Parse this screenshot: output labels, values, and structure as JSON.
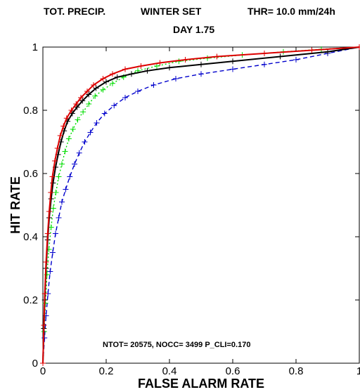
{
  "header": {
    "variable": "TOT. PRECIP.",
    "set": "WINTER SET",
    "threshold": "THR= 10.0 mm/24h",
    "day": "DAY 1.75"
  },
  "stats": "NTOT= 20575, NOCC= 3499   P_CLI=0.170",
  "colors": {
    "red": "#dd0000",
    "black": "#000000",
    "green": "#00dd00",
    "blue": "#0000cc"
  },
  "chart_data": {
    "type": "line",
    "xlabel": "FALSE ALARM RATE",
    "ylabel": "HIT RATE",
    "xlim": [
      0,
      1
    ],
    "ylim": [
      0,
      1
    ],
    "xticks": [
      "0",
      "0.2",
      "0.4",
      "0.6",
      "0.8",
      "1"
    ],
    "yticks": [
      "0",
      "0.2",
      "0.4",
      "0.6",
      "0.8",
      "1"
    ],
    "grid": false,
    "series": [
      {
        "color": "red",
        "style": "solid",
        "marker": "plus",
        "x": [
          0.0,
          0.003,
          0.006,
          0.01,
          0.015,
          0.02,
          0.025,
          0.03,
          0.038,
          0.046,
          0.055,
          0.065,
          0.075,
          0.09,
          0.105,
          0.12,
          0.14,
          0.16,
          0.19,
          0.22,
          0.26,
          0.31,
          0.37,
          0.45,
          0.55,
          0.7,
          0.85,
          1.0
        ],
        "y": [
          0.0,
          0.12,
          0.22,
          0.32,
          0.41,
          0.48,
          0.54,
          0.59,
          0.64,
          0.68,
          0.72,
          0.75,
          0.775,
          0.8,
          0.82,
          0.84,
          0.86,
          0.88,
          0.9,
          0.915,
          0.93,
          0.94,
          0.95,
          0.96,
          0.97,
          0.98,
          0.99,
          1.0
        ]
      },
      {
        "color": "black",
        "style": "solid",
        "marker": "plus",
        "x": [
          0.0,
          0.003,
          0.006,
          0.01,
          0.015,
          0.02,
          0.026,
          0.032,
          0.04,
          0.048,
          0.057,
          0.067,
          0.078,
          0.093,
          0.108,
          0.125,
          0.145,
          0.168,
          0.2,
          0.235,
          0.28,
          0.33,
          0.4,
          0.5,
          0.6,
          0.75,
          0.9,
          1.0
        ],
        "y": [
          0.0,
          0.11,
          0.2,
          0.3,
          0.39,
          0.46,
          0.52,
          0.57,
          0.62,
          0.66,
          0.7,
          0.735,
          0.765,
          0.79,
          0.81,
          0.83,
          0.85,
          0.87,
          0.89,
          0.905,
          0.915,
          0.925,
          0.935,
          0.945,
          0.955,
          0.97,
          0.985,
          1.0
        ]
      },
      {
        "color": "green",
        "style": "dotted",
        "marker": "plus",
        "x": [
          0.0,
          0.004,
          0.008,
          0.013,
          0.019,
          0.026,
          0.033,
          0.041,
          0.05,
          0.06,
          0.07,
          0.082,
          0.095,
          0.11,
          0.127,
          0.145,
          0.165,
          0.19,
          0.22,
          0.255,
          0.3,
          0.36,
          0.43,
          0.52,
          0.63,
          0.76,
          0.88,
          1.0
        ],
        "y": [
          0.0,
          0.1,
          0.19,
          0.28,
          0.36,
          0.43,
          0.49,
          0.54,
          0.59,
          0.63,
          0.67,
          0.71,
          0.74,
          0.77,
          0.795,
          0.82,
          0.845,
          0.865,
          0.885,
          0.905,
          0.925,
          0.94,
          0.955,
          0.965,
          0.975,
          0.985,
          0.993,
          1.0
        ]
      },
      {
        "color": "blue",
        "style": "dashed",
        "marker": "plus",
        "x": [
          0.0,
          0.005,
          0.01,
          0.016,
          0.023,
          0.031,
          0.04,
          0.05,
          0.06,
          0.072,
          0.085,
          0.1,
          0.115,
          0.132,
          0.15,
          0.17,
          0.195,
          0.225,
          0.26,
          0.3,
          0.35,
          0.42,
          0.5,
          0.6,
          0.7,
          0.8,
          0.9,
          1.0
        ],
        "y": [
          0.0,
          0.08,
          0.15,
          0.22,
          0.29,
          0.35,
          0.41,
          0.46,
          0.51,
          0.55,
          0.59,
          0.63,
          0.665,
          0.7,
          0.73,
          0.76,
          0.79,
          0.815,
          0.84,
          0.86,
          0.88,
          0.9,
          0.915,
          0.93,
          0.945,
          0.96,
          0.98,
          1.0
        ]
      }
    ]
  }
}
